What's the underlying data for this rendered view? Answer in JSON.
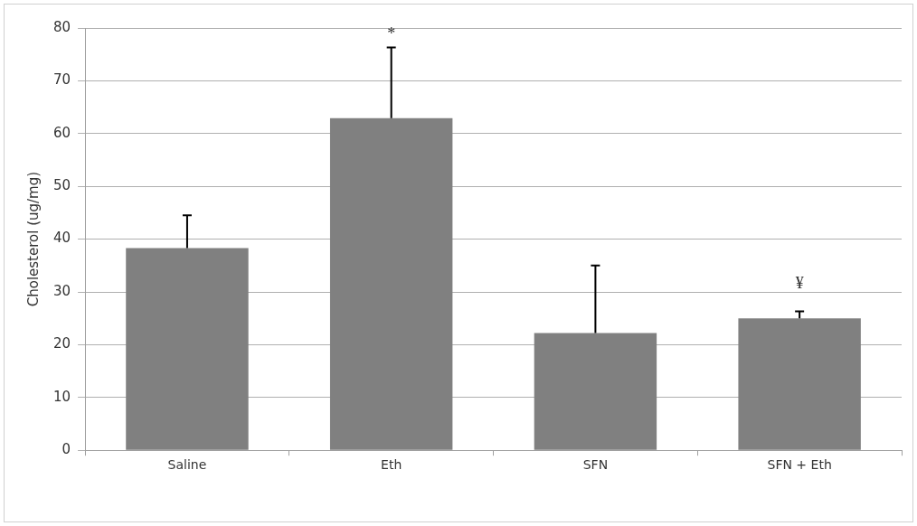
{
  "chart_data": {
    "type": "bar",
    "ylabel": "Cholesterol (ug/mg)",
    "categories": [
      "Saline",
      "Eth",
      "SFN",
      "SFN + Eth"
    ],
    "values": [
      38.3,
      62.9,
      22.2,
      25.0
    ],
    "errors": [
      [
        38.3,
        44.5
      ],
      [
        62.9,
        76.3
      ],
      [
        22.2,
        35.0
      ],
      [
        25.0,
        26.3
      ]
    ],
    "color": "#808080",
    "ylim": [
      0,
      80
    ],
    "yticks": [
      0,
      10,
      20,
      30,
      40,
      50,
      60,
      70,
      80
    ],
    "grid": "y",
    "annotations": [
      "*",
      "¥"
    ]
  }
}
